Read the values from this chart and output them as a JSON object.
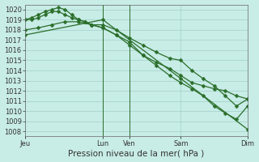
{
  "bg_color": "#c8ece6",
  "grid_color": "#a0d0c8",
  "line_color": "#2a6e2a",
  "ylabel": "Pression niveau de la mer( hPa )",
  "ylim": [
    1007.5,
    1020.5
  ],
  "yticks": [
    1008,
    1009,
    1010,
    1011,
    1012,
    1013,
    1014,
    1015,
    1016,
    1017,
    1018,
    1019,
    1020
  ],
  "xlim": [
    0,
    100
  ],
  "xtick_positions": [
    0,
    35,
    47,
    70,
    100
  ],
  "xtick_labels": [
    "Jeu",
    "Lun",
    "Ven",
    "Sam",
    "Dim"
  ],
  "vline_positions": [
    35,
    47
  ],
  "line1_x": [
    0,
    3,
    6,
    9,
    12,
    15,
    18,
    21,
    24,
    27,
    30,
    35,
    41,
    47,
    53,
    59,
    65,
    70,
    75,
    80,
    85,
    90,
    95,
    100
  ],
  "line1_y": [
    1019.0,
    1019.2,
    1019.5,
    1019.8,
    1020.0,
    1020.2,
    1020.0,
    1019.5,
    1019.0,
    1018.8,
    1018.5,
    1018.5,
    1018.0,
    1017.2,
    1016.5,
    1015.8,
    1015.2,
    1015.0,
    1014.0,
    1013.2,
    1012.5,
    1011.5,
    1010.5,
    1011.2
  ],
  "line2_x": [
    0,
    3,
    6,
    9,
    12,
    15,
    18,
    21,
    24,
    27,
    30,
    35,
    41,
    47,
    53,
    59,
    65,
    70,
    75,
    80,
    85,
    90,
    95,
    100
  ],
  "line2_y": [
    1019.0,
    1019.0,
    1019.2,
    1019.5,
    1019.8,
    1019.8,
    1019.5,
    1019.2,
    1019.0,
    1018.8,
    1018.5,
    1018.2,
    1017.5,
    1016.5,
    1015.5,
    1014.8,
    1014.2,
    1013.5,
    1012.8,
    1012.5,
    1012.2,
    1012.0,
    1011.5,
    1011.2
  ],
  "line3_x": [
    0,
    6,
    12,
    18,
    24,
    30,
    35,
    41,
    47,
    53,
    59,
    65,
    70,
    75,
    80,
    85,
    90,
    95,
    100
  ],
  "line3_y": [
    1018.0,
    1018.2,
    1018.5,
    1018.8,
    1018.8,
    1018.5,
    1018.2,
    1017.5,
    1016.8,
    1015.5,
    1014.5,
    1013.5,
    1012.8,
    1012.2,
    1011.5,
    1010.5,
    1009.8,
    1009.2,
    1010.5
  ],
  "line4_x": [
    0,
    35,
    70,
    100
  ],
  "line4_y": [
    1017.5,
    1019.0,
    1013.2,
    1008.2
  ],
  "markersize": 2.5,
  "linewidth": 0.9,
  "tick_fontsize": 6,
  "label_fontsize": 7.5
}
